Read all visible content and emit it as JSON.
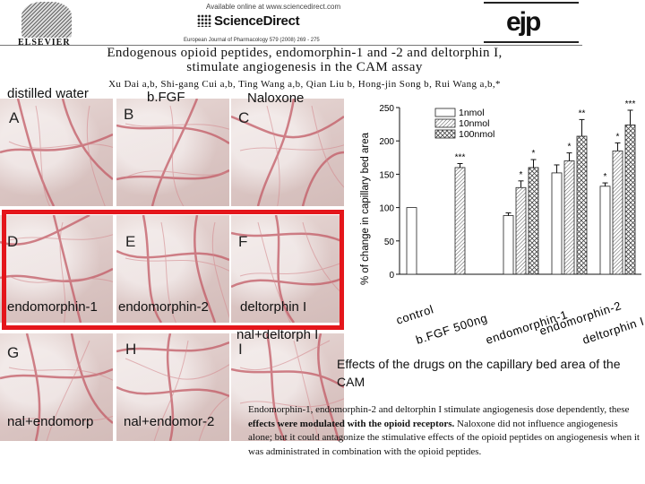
{
  "header": {
    "publisher": "ELSEVIER",
    "available_online": "Available online at www.sciencedirect.com",
    "platform": "ScienceDirect",
    "journal_ref": "European Journal of Pharmacology 579 (2008) 269 - 275",
    "journal_logo": "ejp",
    "title_line1": "Endogenous opioid peptides, endomorphin-1 and -2 and deltorphin I,",
    "title_line2": "stimulate angiogenesis in the CAM assay",
    "authors": "Xu Dai a,b, Shi-gang Cui a,b, Ting Wang a,b, Qian Liu b, Hong-jin Song b, Rui Wang a,b,*"
  },
  "panels": [
    {
      "letter": "A",
      "label": "distilled water"
    },
    {
      "letter": "B",
      "label": "b.FGF"
    },
    {
      "letter": "C",
      "label": "Naloxone"
    },
    {
      "letter": "D",
      "label": "endomorphin-1"
    },
    {
      "letter": "E",
      "label": "endomorphin-2"
    },
    {
      "letter": "F",
      "label": "deltorphin I"
    },
    {
      "letter": "G",
      "label": "nal+endomorp"
    },
    {
      "letter": "H",
      "label": "nal+endomor-2"
    },
    {
      "letter": "I",
      "label": "nal+deltorph I"
    }
  ],
  "chart_data": {
    "type": "bar",
    "ylabel": "% of change in capillary bed area",
    "ylim": [
      0,
      250
    ],
    "yticks": [
      0,
      50,
      100,
      150,
      200,
      250
    ],
    "categories": [
      "control",
      "b.FGF 500ng",
      "endomorphin-1",
      "endomorphin-2",
      "deltorphin I"
    ],
    "legend": [
      "1nmol",
      "10nmol",
      "100nmol"
    ],
    "bars": [
      {
        "group": "control",
        "pattern": "plain",
        "value": 100,
        "err": 0,
        "sig": ""
      },
      {
        "group": "b.FGF 500ng",
        "pattern": "hatch",
        "value": 160,
        "err": 6,
        "sig": "***"
      },
      {
        "group": "endomorphin-1",
        "pattern": "plain",
        "value": 88,
        "err": 4,
        "sig": ""
      },
      {
        "group": "endomorphin-1",
        "pattern": "hatch",
        "value": 130,
        "err": 10,
        "sig": "*"
      },
      {
        "group": "endomorphin-1",
        "pattern": "cross",
        "value": 160,
        "err": 12,
        "sig": "*"
      },
      {
        "group": "endomorphin-2",
        "pattern": "plain",
        "value": 152,
        "err": 12,
        "sig": ""
      },
      {
        "group": "endomorphin-2",
        "pattern": "hatch",
        "value": 170,
        "err": 12,
        "sig": "*"
      },
      {
        "group": "endomorphin-2",
        "pattern": "cross",
        "value": 207,
        "err": 25,
        "sig": "**"
      },
      {
        "group": "deltorphin I",
        "pattern": "plain",
        "value": 132,
        "err": 5,
        "sig": "*"
      },
      {
        "group": "deltorphin I",
        "pattern": "hatch",
        "value": 185,
        "err": 12,
        "sig": "*"
      },
      {
        "group": "deltorphin I",
        "pattern": "cross",
        "value": 224,
        "err": 22,
        "sig": "***"
      }
    ]
  },
  "caption_main": "Effects of the drugs on the capillary bed area of the CAM",
  "caption_detail_1": "Endomorphin-1, endomorphin-2 and deltorphin I stimulate angiogenesis dose dependently, these ",
  "caption_detail_bold": "effects were modulated with the opioid receptors.",
  "caption_detail_2": " Naloxone did not influence angiogenesis alone; but it could antagonize the stimulative effects of the opioid peptides on angiogenesis when it was administrated in combination with the opioid peptides."
}
